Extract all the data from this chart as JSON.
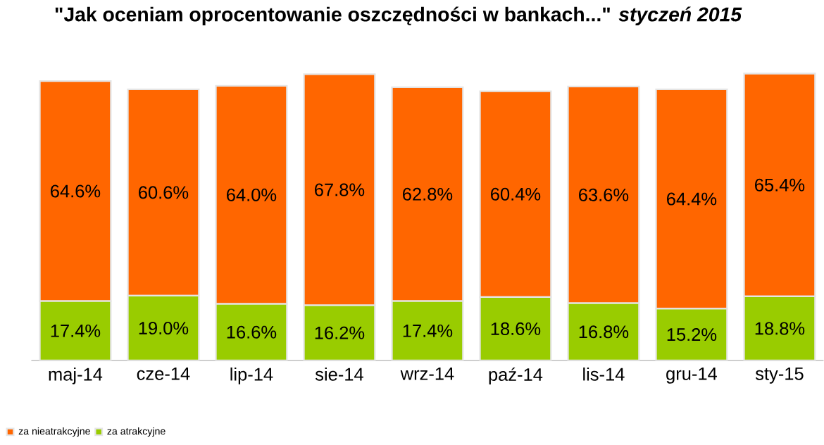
{
  "chart_data": {
    "type": "bar",
    "stacked": true,
    "title": "**\"Jak oceniam oprocentowanie oszczędności w bankach...\"** *styczeń 2015*",
    "categories": [
      "maj-14",
      "cze-14",
      "lip-14",
      "sie-14",
      "wrz-14",
      "paź-14",
      "lis-14",
      "gru-14",
      "sty-15"
    ],
    "series": [
      {
        "name": "za atrakcyjne",
        "color": "#99cc00",
        "values": [
          17.4,
          19.0,
          16.6,
          16.2,
          17.4,
          18.6,
          16.8,
          15.2,
          18.8
        ],
        "value_labels": [
          "17.4%",
          "19.0%",
          "16.6%",
          "16.2%",
          "17.4%",
          "18.6%",
          "16.8%",
          "15.2%",
          "18.8%"
        ]
      },
      {
        "name": "za nieatrakcyjne",
        "color": "#ff6600",
        "values": [
          64.6,
          60.6,
          64.0,
          67.8,
          62.8,
          60.4,
          63.6,
          64.4,
          65.4
        ],
        "value_labels": [
          "64.6%",
          "60.6%",
          "64.0%",
          "67.8%",
          "62.8%",
          "60.4%",
          "63.6%",
          "64.4%",
          "65.4%"
        ]
      }
    ],
    "legend": "bottom left"
  }
}
